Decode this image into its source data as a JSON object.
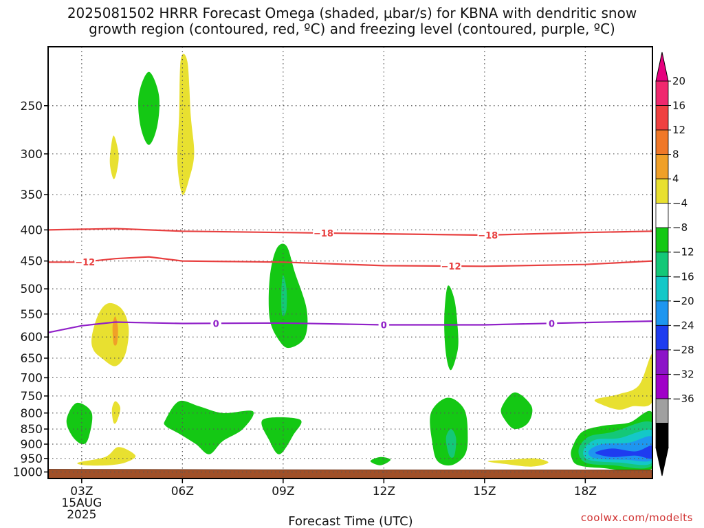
{
  "title": {
    "line1": "2025081502 HRRR Forecast Omega (shaded, µbar/s) for KBNA with dendritic snow",
    "line2": "growth region (contoured, red, ºC) and freezing level (contoured, purple, ºC)"
  },
  "credit": "coolwx.com/modelts",
  "chart_data": {
    "type": "contour",
    "xlabel": "Forecast Time (UTC)",
    "ylabel": "",
    "x_ticks": [
      "03Z",
      "06Z",
      "09Z",
      "12Z",
      "15Z",
      "18Z"
    ],
    "x_tick_hours": [
      3,
      6,
      9,
      12,
      15,
      18
    ],
    "x_range_hours": [
      2,
      20
    ],
    "date_label": [
      "15AUG",
      "2025"
    ],
    "y_scale": "log",
    "y_range_hpa": [
      200,
      1025
    ],
    "y_ticks": [
      250,
      300,
      350,
      400,
      450,
      500,
      550,
      600,
      650,
      700,
      750,
      800,
      850,
      900,
      950,
      1000
    ],
    "grid": true,
    "colorbar": {
      "levels": [
        "20",
        "16",
        "12",
        "8",
        "4",
        "−4",
        "−8",
        "−12",
        "−16",
        "−20",
        "−24",
        "−28",
        "−32",
        "−36"
      ],
      "colors": [
        "#f0286e",
        "#f04040",
        "#f07828",
        "#f0a028",
        "#e8e030",
        "#ffffff",
        "#14c814",
        "#14c878",
        "#14c8c8",
        "#1e96f0",
        "#1e3cf0",
        "#8c14c8",
        "#a000c8",
        "#a0a0a0",
        "#000000"
      ],
      "top_arrow_color": "#e6007e",
      "bottom_arrow_color": "#000000"
    },
    "contours": [
      {
        "label": "−18",
        "color": "#e84040",
        "points": [
          [
            2,
            400
          ],
          [
            4,
            398
          ],
          [
            6,
            402
          ],
          [
            9,
            404
          ],
          [
            12,
            406
          ],
          [
            15,
            408
          ],
          [
            18,
            404
          ],
          [
            20,
            402
          ]
        ],
        "label_positions": [
          10.2,
          15.1
        ]
      },
      {
        "label": "−12",
        "color": "#e84040",
        "points": [
          [
            2,
            452
          ],
          [
            3,
            452
          ],
          [
            4,
            446
          ],
          [
            5,
            443
          ],
          [
            6,
            450
          ],
          [
            9,
            452
          ],
          [
            12,
            458
          ],
          [
            15,
            459
          ],
          [
            18,
            456
          ],
          [
            20,
            450
          ]
        ],
        "label_positions": [
          3.1,
          14
        ]
      },
      {
        "label": "0",
        "color": "#9020c8",
        "points": [
          [
            2,
            590
          ],
          [
            3,
            575
          ],
          [
            4,
            567
          ],
          [
            6,
            570
          ],
          [
            9,
            569
          ],
          [
            12,
            573
          ],
          [
            15,
            573
          ],
          [
            18,
            568
          ],
          [
            20,
            565
          ]
        ],
        "label_positions": [
          7,
          12,
          17
        ]
      }
    ],
    "regions": [
      {
        "level": "−4",
        "color": "#14c814",
        "points": [
          [
            4.7,
            240
          ],
          [
            5,
            220
          ],
          [
            5.3,
            240
          ],
          [
            5.25,
            270
          ],
          [
            5,
            290
          ],
          [
            4.75,
            270
          ]
        ]
      },
      {
        "level": "4",
        "color": "#e8e030",
        "points": [
          [
            5.9,
            260
          ],
          [
            5.95,
            210
          ],
          [
            6.15,
            212
          ],
          [
            6.25,
            260
          ],
          [
            6.35,
            300
          ],
          [
            6.2,
            330
          ],
          [
            6,
            350
          ],
          [
            5.85,
            310
          ]
        ]
      },
      {
        "level": "4",
        "color": "#e8e030",
        "points": [
          [
            3.85,
            300
          ],
          [
            3.95,
            280
          ],
          [
            4.1,
            300
          ],
          [
            4.05,
            320
          ],
          [
            3.95,
            330
          ],
          [
            3.85,
            315
          ]
        ]
      },
      {
        "level": "4",
        "color": "#e8e030",
        "points": [
          [
            3.3,
            600
          ],
          [
            3.5,
            550
          ],
          [
            3.8,
            528
          ],
          [
            4.2,
            540
          ],
          [
            4.4,
            580
          ],
          [
            4.3,
            640
          ],
          [
            4,
            670
          ],
          [
            3.6,
            650
          ],
          [
            3.35,
            630
          ]
        ]
      },
      {
        "level": "8",
        "color": "#f0a028",
        "points": [
          [
            3.92,
            575
          ],
          [
            4.0,
            555
          ],
          [
            4.08,
            580
          ],
          [
            4.05,
            615
          ],
          [
            3.95,
            615
          ]
        ]
      },
      {
        "level": "−4",
        "color": "#14c814",
        "points": [
          [
            8.6,
            480
          ],
          [
            8.8,
            430
          ],
          [
            9.1,
            425
          ],
          [
            9.35,
            470
          ],
          [
            9.7,
            540
          ],
          [
            9.65,
            600
          ],
          [
            9.2,
            625
          ],
          [
            8.9,
            610
          ],
          [
            8.6,
            560
          ]
        ]
      },
      {
        "level": "−8",
        "color": "#14c878",
        "points": [
          [
            8.95,
            500
          ],
          [
            9.0,
            475
          ],
          [
            9.1,
            500
          ],
          [
            9.1,
            540
          ],
          [
            9.0,
            555
          ],
          [
            8.95,
            540
          ]
        ]
      },
      {
        "level": "−4",
        "color": "#14c814",
        "points": [
          [
            13.8,
            560
          ],
          [
            13.9,
            495
          ],
          [
            14.1,
            520
          ],
          [
            14.2,
            580
          ],
          [
            14.2,
            630
          ],
          [
            14,
            680
          ],
          [
            13.85,
            640
          ]
        ]
      },
      {
        "level": "−4",
        "color": "#14c814",
        "points": [
          [
            2.55,
            820
          ],
          [
            2.85,
            770
          ],
          [
            3.3,
            800
          ],
          [
            3.2,
            880
          ],
          [
            3.0,
            900
          ],
          [
            2.7,
            870
          ]
        ]
      },
      {
        "level": "4",
        "color": "#e8e030",
        "points": [
          [
            3.9,
            790
          ],
          [
            4.0,
            765
          ],
          [
            4.15,
            785
          ],
          [
            4.05,
            825
          ],
          [
            3.95,
            830
          ]
        ]
      },
      {
        "level": "−4",
        "color": "#14c814",
        "points": [
          [
            5.5,
            820
          ],
          [
            5.9,
            765
          ],
          [
            6.5,
            780
          ],
          [
            7.2,
            800
          ],
          [
            8.1,
            795
          ],
          [
            7.8,
            850
          ],
          [
            7.2,
            890
          ],
          [
            6.8,
            935
          ],
          [
            6.4,
            900
          ],
          [
            5.9,
            865
          ],
          [
            5.5,
            840
          ]
        ]
      },
      {
        "level": "−4",
        "color": "#14c814",
        "points": [
          [
            8.4,
            820
          ],
          [
            9.5,
            820
          ],
          [
            9.3,
            870
          ],
          [
            8.9,
            935
          ],
          [
            8.6,
            890
          ]
        ]
      },
      {
        "level": "4",
        "color": "#e8e030",
        "points": [
          [
            2.9,
            965
          ],
          [
            3.7,
            945
          ],
          [
            4.1,
            910
          ],
          [
            4.6,
            940
          ],
          [
            4.3,
            965
          ],
          [
            3.8,
            975
          ],
          [
            3.1,
            975
          ]
        ]
      },
      {
        "level": "−4",
        "color": "#14c814",
        "points": [
          [
            11.6,
            960
          ],
          [
            11.9,
            945
          ],
          [
            12.2,
            955
          ],
          [
            11.9,
            975
          ]
        ]
      },
      {
        "level": "−4",
        "color": "#14c814",
        "points": [
          [
            13.4,
            800
          ],
          [
            13.9,
            755
          ],
          [
            14.4,
            790
          ],
          [
            14.5,
            880
          ],
          [
            14.4,
            940
          ],
          [
            14.0,
            975
          ],
          [
            13.6,
            960
          ],
          [
            13.45,
            900
          ]
        ]
      },
      {
        "level": "−8",
        "color": "#14c878",
        "points": [
          [
            13.85,
            880
          ],
          [
            14.0,
            850
          ],
          [
            14.15,
            880
          ],
          [
            14.1,
            940
          ],
          [
            13.95,
            940
          ]
        ]
      },
      {
        "level": "−4",
        "color": "#14c814",
        "points": [
          [
            15.5,
            785
          ],
          [
            15.9,
            740
          ],
          [
            16.4,
            780
          ],
          [
            16.3,
            830
          ],
          [
            15.9,
            850
          ],
          [
            15.6,
            820
          ]
        ]
      },
      {
        "level": "4",
        "color": "#e8e030",
        "points": [
          [
            15.1,
            960
          ],
          [
            15.8,
            955
          ],
          [
            16.5,
            950
          ],
          [
            16.9,
            965
          ],
          [
            16.4,
            980
          ],
          [
            15.6,
            970
          ]
        ]
      },
      {
        "level": "4",
        "color": "#e8e030",
        "points": [
          [
            18.3,
            760
          ],
          [
            19,
            745
          ],
          [
            19.6,
            720
          ],
          [
            20,
            640
          ],
          [
            20,
            765
          ],
          [
            19.4,
            780
          ],
          [
            19,
            790
          ],
          [
            18.5,
            775
          ]
        ]
      },
      {
        "level": "−4",
        "color": "#14c814",
        "points": [
          [
            17.6,
            915
          ],
          [
            17.9,
            860
          ],
          [
            18.5,
            840
          ],
          [
            19.3,
            830
          ],
          [
            20,
            800
          ],
          [
            20,
            985
          ],
          [
            18.5,
            985
          ],
          [
            17.8,
            975
          ],
          [
            17.6,
            950
          ]
        ]
      },
      {
        "level": "−8",
        "color": "#14c878",
        "points": [
          [
            17.8,
            920
          ],
          [
            18.1,
            875
          ],
          [
            18.8,
            860
          ],
          [
            20,
            830
          ],
          [
            20,
            975
          ],
          [
            18.8,
            975
          ],
          [
            18.0,
            965
          ]
        ]
      },
      {
        "level": "−12",
        "color": "#14c8c8",
        "points": [
          [
            17.95,
            920
          ],
          [
            18.3,
            885
          ],
          [
            19,
            880
          ],
          [
            20,
            855
          ],
          [
            20,
            965
          ],
          [
            19,
            965
          ],
          [
            18.1,
            955
          ]
        ]
      },
      {
        "level": "−16",
        "color": "#1e96f0",
        "points": [
          [
            18.1,
            925
          ],
          [
            18.5,
            900
          ],
          [
            19.3,
            895
          ],
          [
            20,
            875
          ],
          [
            20,
            955
          ],
          [
            19.2,
            955
          ],
          [
            18.3,
            950
          ]
        ]
      },
      {
        "level": "−20",
        "color": "#1e3cf0",
        "points": [
          [
            18.3,
            930
          ],
          [
            18.8,
            915
          ],
          [
            19.5,
            925
          ],
          [
            20,
            905
          ],
          [
            20,
            950
          ],
          [
            19.5,
            940
          ],
          [
            18.8,
            945
          ]
        ]
      }
    ],
    "terrain": {
      "color": "#a05028",
      "points": [
        [
          2,
          990
        ],
        [
          9,
          992
        ],
        [
          20,
          993
        ]
      ]
    }
  }
}
